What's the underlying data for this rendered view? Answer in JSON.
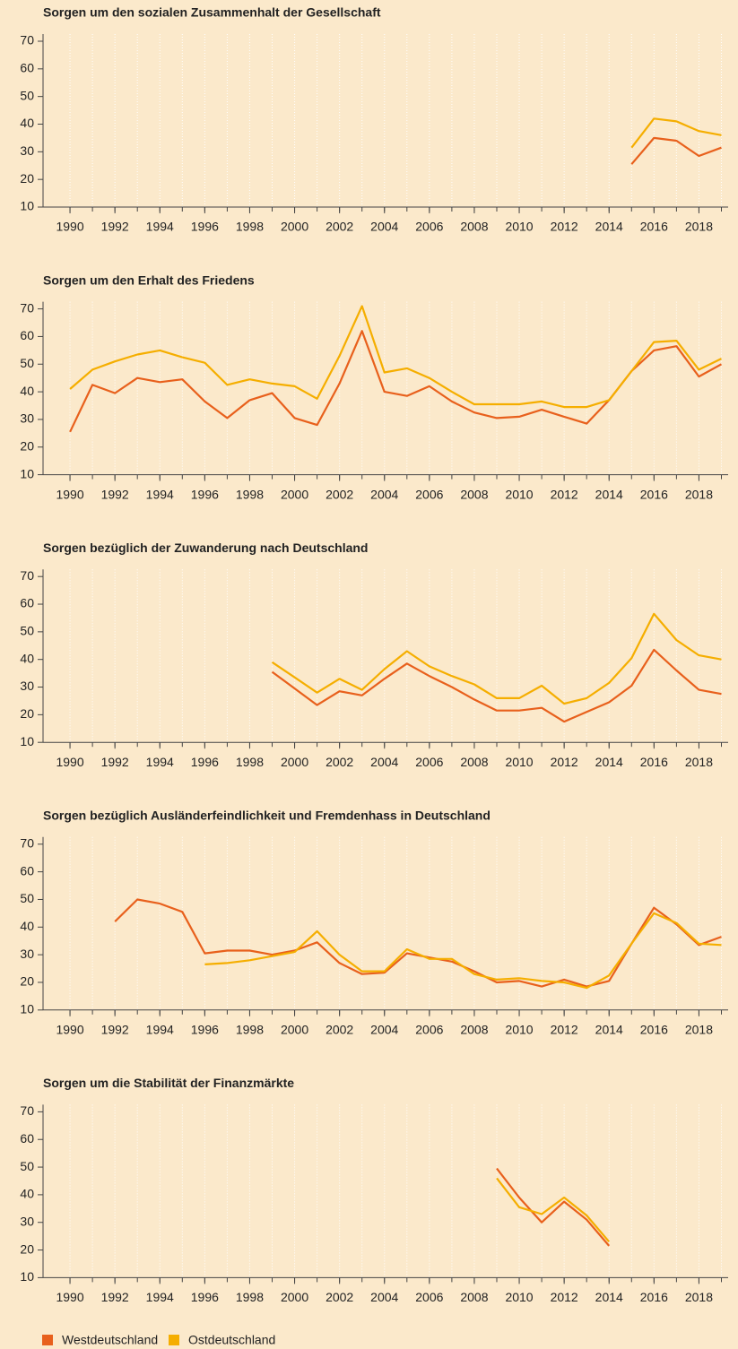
{
  "chart_data": [
    {
      "type": "line",
      "title": "Sorgen um den sozialen Zusammenhalt der Gesellschaft",
      "x": [
        1990,
        1991,
        1992,
        1993,
        1994,
        1995,
        1996,
        1997,
        1998,
        1999,
        2000,
        2001,
        2002,
        2003,
        2004,
        2005,
        2006,
        2007,
        2008,
        2009,
        2010,
        2011,
        2012,
        2013,
        2014,
        2015,
        2016,
        2017,
        2018,
        2019
      ],
      "series": [
        {
          "name": "Westdeutschland",
          "color": "#e8601c",
          "values": [
            null,
            null,
            null,
            null,
            null,
            null,
            null,
            null,
            null,
            null,
            null,
            null,
            null,
            null,
            null,
            null,
            null,
            null,
            null,
            null,
            null,
            null,
            null,
            null,
            null,
            25.5,
            35,
            34,
            28.5,
            31.5
          ]
        },
        {
          "name": "Ostdeutschland",
          "color": "#f5ae00",
          "values": [
            null,
            null,
            null,
            null,
            null,
            null,
            null,
            null,
            null,
            null,
            null,
            null,
            null,
            null,
            null,
            null,
            null,
            null,
            null,
            null,
            null,
            null,
            null,
            null,
            null,
            31.5,
            42,
            41,
            37.5,
            36
          ]
        }
      ],
      "xlim": [
        1988.8,
        2019.3
      ],
      "xticks": [
        1990,
        1992,
        1994,
        1996,
        1998,
        2000,
        2002,
        2004,
        2006,
        2008,
        2010,
        2012,
        2014,
        2016,
        2018
      ],
      "ylim": [
        10,
        70
      ],
      "yticks": [
        10,
        20,
        30,
        40,
        50,
        60,
        70
      ],
      "grid": true
    },
    {
      "type": "line",
      "title": "Sorgen um den Erhalt des Friedens",
      "x": [
        1990,
        1991,
        1992,
        1993,
        1994,
        1995,
        1996,
        1997,
        1998,
        1999,
        2000,
        2001,
        2002,
        2003,
        2004,
        2005,
        2006,
        2007,
        2008,
        2009,
        2010,
        2011,
        2012,
        2013,
        2014,
        2015,
        2016,
        2017,
        2018,
        2019
      ],
      "series": [
        {
          "name": "Westdeutschland",
          "color": "#e8601c",
          "values": [
            25.5,
            42.5,
            39.5,
            45,
            43.5,
            44.5,
            36.5,
            30.5,
            37,
            39.5,
            30.5,
            28,
            43,
            62,
            40,
            38.5,
            42,
            36.5,
            32.5,
            30.5,
            31,
            33.5,
            31,
            28.5,
            37,
            47.5,
            55,
            56.5,
            45.5,
            50
          ]
        },
        {
          "name": "Ostdeutschland",
          "color": "#f5ae00",
          "values": [
            41,
            48,
            51,
            53.5,
            55,
            52.5,
            50.5,
            42.5,
            44.5,
            43,
            42,
            37.5,
            53,
            71,
            47,
            48.5,
            45,
            40,
            35.5,
            35.5,
            35.5,
            36.5,
            34.5,
            34.5,
            37,
            47.5,
            58,
            58.5,
            48,
            52
          ]
        }
      ],
      "xlim": [
        1988.8,
        2019.3
      ],
      "xticks": [
        1990,
        1992,
        1994,
        1996,
        1998,
        2000,
        2002,
        2004,
        2006,
        2008,
        2010,
        2012,
        2014,
        2016,
        2018
      ],
      "ylim": [
        10,
        70
      ],
      "yticks": [
        10,
        20,
        30,
        40,
        50,
        60,
        70
      ],
      "grid": true
    },
    {
      "type": "line",
      "title": "Sorgen bezüglich der Zuwanderung nach Deutschland",
      "x": [
        1990,
        1991,
        1992,
        1993,
        1994,
        1995,
        1996,
        1997,
        1998,
        1999,
        2000,
        2001,
        2002,
        2003,
        2004,
        2005,
        2006,
        2007,
        2008,
        2009,
        2010,
        2011,
        2012,
        2013,
        2014,
        2015,
        2016,
        2017,
        2018,
        2019
      ],
      "series": [
        {
          "name": "Westdeutschland",
          "color": "#e8601c",
          "values": [
            null,
            null,
            null,
            null,
            null,
            null,
            null,
            null,
            null,
            35.5,
            29.5,
            23.5,
            28.5,
            27,
            33,
            38.5,
            34,
            30,
            25.5,
            21.5,
            21.5,
            22.5,
            17.5,
            21,
            24.5,
            30.5,
            43.5,
            36,
            29,
            27.5
          ]
        },
        {
          "name": "Ostdeutschland",
          "color": "#f5ae00",
          "values": [
            null,
            null,
            null,
            null,
            null,
            null,
            null,
            null,
            null,
            39,
            33.5,
            28,
            33,
            29,
            36.5,
            43,
            37.5,
            34,
            31,
            26,
            26,
            30.5,
            24,
            26,
            31.5,
            40.5,
            56.5,
            47,
            41.5,
            40
          ]
        }
      ],
      "xlim": [
        1988.8,
        2019.3
      ],
      "xticks": [
        1990,
        1992,
        1994,
        1996,
        1998,
        2000,
        2002,
        2004,
        2006,
        2008,
        2010,
        2012,
        2014,
        2016,
        2018
      ],
      "ylim": [
        10,
        70
      ],
      "yticks": [
        10,
        20,
        30,
        40,
        50,
        60,
        70
      ],
      "grid": true
    },
    {
      "type": "line",
      "title": "Sorgen bezüglich Ausländerfeindlichkeit und Fremdenhass in Deutschland",
      "x": [
        1990,
        1991,
        1992,
        1993,
        1994,
        1995,
        1996,
        1997,
        1998,
        1999,
        2000,
        2001,
        2002,
        2003,
        2004,
        2005,
        2006,
        2007,
        2008,
        2009,
        2010,
        2011,
        2012,
        2013,
        2014,
        2015,
        2016,
        2017,
        2018,
        2019
      ],
      "series": [
        {
          "name": "Westdeutschland",
          "color": "#e8601c",
          "values": [
            null,
            null,
            42,
            50,
            48.5,
            45.5,
            30.5,
            31.5,
            31.5,
            30,
            31.5,
            34.5,
            27,
            23,
            23.5,
            30.5,
            29,
            27.5,
            24,
            20,
            20.5,
            18.5,
            21,
            18.5,
            20.5,
            34,
            47,
            41,
            33.5,
            36.5
          ]
        },
        {
          "name": "Ostdeutschland",
          "color": "#f5ae00",
          "values": [
            null,
            null,
            null,
            null,
            null,
            null,
            26.5,
            27,
            28,
            29.5,
            31,
            38.5,
            30,
            24,
            24,
            32,
            28.5,
            28.5,
            23,
            21,
            21.5,
            20.5,
            20,
            18,
            22.5,
            34,
            45,
            41.5,
            34,
            33.5
          ]
        }
      ],
      "xlim": [
        1988.8,
        2019.3
      ],
      "xticks": [
        1990,
        1992,
        1994,
        1996,
        1998,
        2000,
        2002,
        2004,
        2006,
        2008,
        2010,
        2012,
        2014,
        2016,
        2018
      ],
      "ylim": [
        10,
        70
      ],
      "yticks": [
        10,
        20,
        30,
        40,
        50,
        60,
        70
      ],
      "grid": true
    },
    {
      "type": "line",
      "title": "Sorgen um die Stabilität der Finanzmärkte",
      "x": [
        1990,
        1991,
        1992,
        1993,
        1994,
        1995,
        1996,
        1997,
        1998,
        1999,
        2000,
        2001,
        2002,
        2003,
        2004,
        2005,
        2006,
        2007,
        2008,
        2009,
        2010,
        2011,
        2012,
        2013,
        2014,
        2015,
        2016,
        2017,
        2018,
        2019
      ],
      "series": [
        {
          "name": "Westdeutschland",
          "color": "#e8601c",
          "values": [
            null,
            null,
            null,
            null,
            null,
            null,
            null,
            null,
            null,
            null,
            null,
            null,
            null,
            null,
            null,
            null,
            null,
            null,
            null,
            49.5,
            39,
            30,
            37.5,
            31,
            21.5,
            null,
            null,
            null,
            null,
            null
          ]
        },
        {
          "name": "Ostdeutschland",
          "color": "#f5ae00",
          "values": [
            null,
            null,
            null,
            null,
            null,
            null,
            null,
            null,
            null,
            null,
            null,
            null,
            null,
            null,
            null,
            null,
            null,
            null,
            null,
            46,
            35.5,
            33,
            39,
            32.5,
            23,
            null,
            null,
            null,
            null,
            null
          ]
        }
      ],
      "xlim": [
        1988.8,
        2019.3
      ],
      "xticks": [
        1990,
        1992,
        1994,
        1996,
        1998,
        2000,
        2002,
        2004,
        2006,
        2008,
        2010,
        2012,
        2014,
        2016,
        2018
      ],
      "ylim": [
        10,
        70
      ],
      "yticks": [
        10,
        20,
        30,
        40,
        50,
        60,
        70
      ],
      "grid": true
    }
  ]
}
